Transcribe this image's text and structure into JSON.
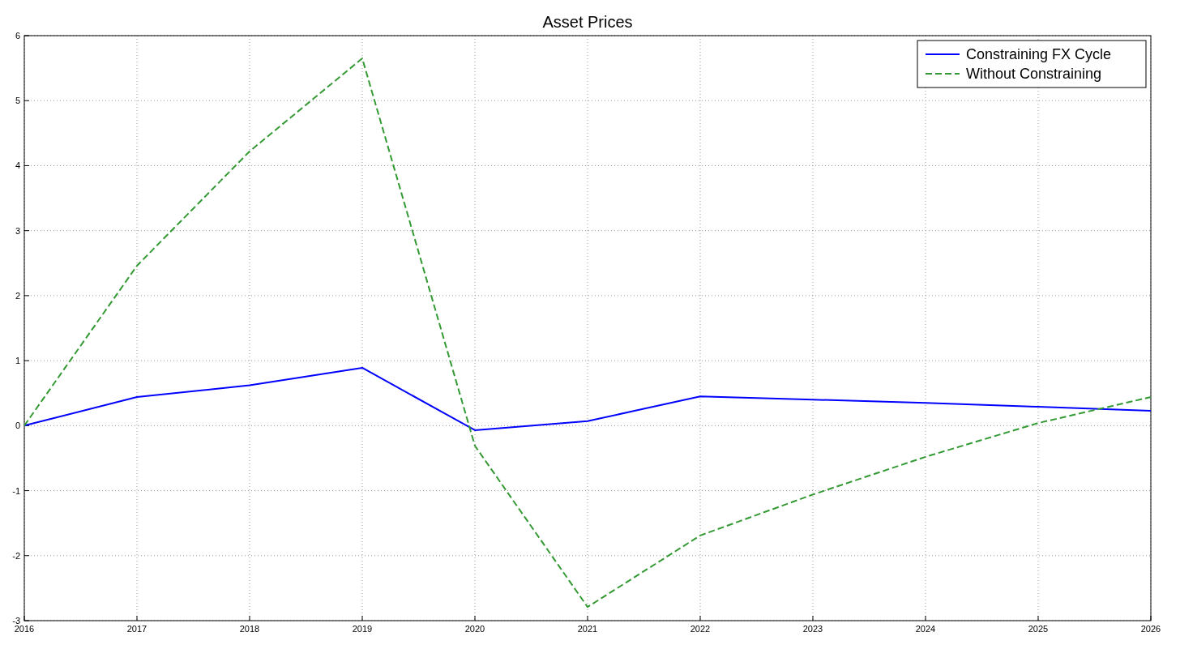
{
  "chart_data": {
    "type": "line",
    "title": "Asset Prices",
    "x": [
      2016,
      2017,
      2018,
      2019,
      2020,
      2021,
      2022,
      2023,
      2024,
      2025,
      2026
    ],
    "series": [
      {
        "name": "Constraining FX Cycle",
        "color": "#0000ff",
        "line_style": "solid",
        "values": [
          0,
          0.44,
          0.62,
          0.89,
          -0.07,
          0.07,
          0.45,
          0.4,
          0.35,
          0.29,
          0.23
        ]
      },
      {
        "name": "Without Constraining",
        "color": "#339933",
        "line_style": "dashed",
        "values": [
          0,
          2.46,
          4.22,
          5.65,
          -0.31,
          -2.79,
          -1.69,
          -1.06,
          -0.48,
          0.04,
          0.44
        ]
      }
    ],
    "xlim": [
      2016,
      2026
    ],
    "xticks": [
      2016,
      2017,
      2018,
      2019,
      2020,
      2021,
      2022,
      2023,
      2024,
      2025,
      2026
    ],
    "ylim": [
      -3,
      6
    ],
    "yticks": [
      -3,
      -2,
      -1,
      0,
      1,
      2,
      3,
      4,
      5,
      6
    ],
    "grid": true,
    "legend": "top right",
    "marker": "none"
  }
}
